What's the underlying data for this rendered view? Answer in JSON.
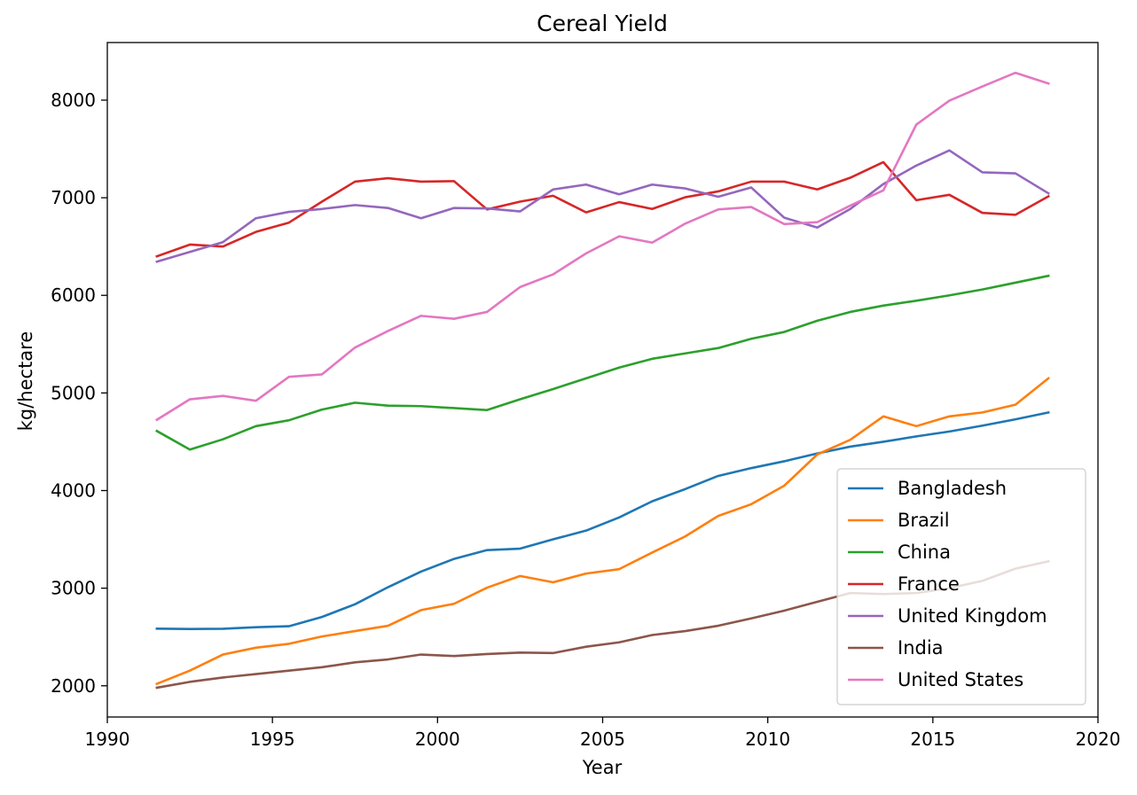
{
  "chart_data": {
    "type": "line",
    "title": "Cereal Yield",
    "xlabel": "Year",
    "ylabel": "kg/hectare",
    "xlim": [
      1990,
      2020
    ],
    "ylim": [
      1680,
      8590
    ],
    "xticks": [
      1990,
      1995,
      2000,
      2005,
      2010,
      2015,
      2020
    ],
    "yticks": [
      2000,
      3000,
      4000,
      5000,
      6000,
      7000,
      8000
    ],
    "grid": false,
    "legend_position": "lower-right",
    "x": [
      1991.5,
      1992.5,
      1993.5,
      1994.5,
      1995.5,
      1996.5,
      1997.5,
      1998.5,
      1999.5,
      2000.5,
      2001.5,
      2002.5,
      2003.5,
      2004.5,
      2005.5,
      2006.5,
      2007.5,
      2008.5,
      2009.5,
      2010.5,
      2011.5,
      2012.5,
      2013.5,
      2014.5,
      2015.5,
      2016.5,
      2017.5,
      2018.5
    ],
    "series": [
      {
        "name": "Bangladesh",
        "color": "#1f77b4",
        "values": [
          2585,
          2582,
          2584,
          2600,
          2610,
          2705,
          2835,
          3010,
          3170,
          3300,
          3390,
          3405,
          3500,
          3590,
          3725,
          3890,
          4015,
          4150,
          4230,
          4300,
          4380,
          4450,
          4500,
          4555,
          4605,
          4665,
          4730,
          4800
        ]
      },
      {
        "name": "Brazil",
        "color": "#ff7f0e",
        "values": [
          2020,
          2155,
          2320,
          2390,
          2430,
          2505,
          2560,
          2615,
          2775,
          2840,
          3005,
          3125,
          3060,
          3150,
          3195,
          3365,
          3530,
          3740,
          3860,
          4050,
          4370,
          4520,
          4760,
          4660,
          4760,
          4800,
          4880,
          5150
        ]
      },
      {
        "name": "China",
        "color": "#2ca02c",
        "values": [
          4610,
          4420,
          4525,
          4660,
          4720,
          4830,
          4900,
          4870,
          4865,
          4845,
          4825,
          4935,
          5040,
          5150,
          5260,
          5350,
          5405,
          5460,
          5555,
          5625,
          5740,
          5830,
          5895,
          5945,
          6000,
          6060,
          6130,
          6200
        ]
      },
      {
        "name": "France",
        "color": "#d62728",
        "values": [
          6400,
          6520,
          6500,
          6650,
          6745,
          6960,
          7165,
          7200,
          7165,
          7170,
          6880,
          6960,
          7020,
          6850,
          6955,
          6885,
          7005,
          7065,
          7165,
          7165,
          7085,
          7205,
          7365,
          6975,
          7030,
          6845,
          6825,
          7015
        ]
      },
      {
        "name": "United Kingdom",
        "color": "#9467bd",
        "values": [
          6345,
          6445,
          6545,
          6790,
          6855,
          6885,
          6925,
          6895,
          6790,
          6895,
          6890,
          6860,
          7085,
          7135,
          7035,
          7135,
          7095,
          7010,
          7105,
          6795,
          6695,
          6885,
          7140,
          7330,
          7485,
          7260,
          7250,
          7045
        ]
      },
      {
        "name": "India",
        "color": "#8c564b",
        "values": [
          1980,
          2040,
          2085,
          2120,
          2155,
          2190,
          2240,
          2270,
          2320,
          2305,
          2325,
          2340,
          2335,
          2400,
          2445,
          2520,
          2560,
          2615,
          2690,
          2770,
          2860,
          2950,
          2940,
          2950,
          3000,
          3075,
          3200,
          3275
        ]
      },
      {
        "name": "United States",
        "color": "#e377c2",
        "values": [
          4725,
          4935,
          4970,
          4920,
          5165,
          5190,
          5465,
          5635,
          5790,
          5760,
          5830,
          6085,
          6215,
          6430,
          6605,
          6540,
          6735,
          6880,
          6905,
          6730,
          6750,
          6920,
          7075,
          7750,
          7995,
          8140,
          8280,
          8170
        ]
      }
    ]
  }
}
